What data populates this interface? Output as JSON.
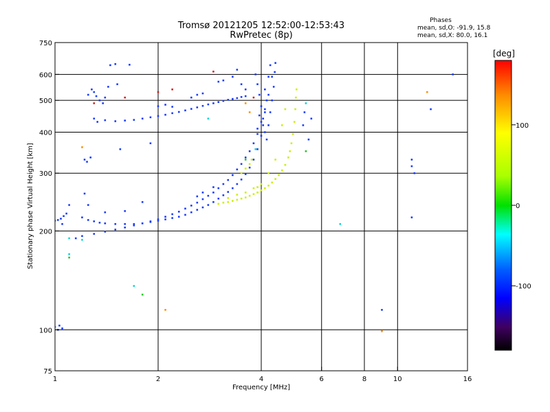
{
  "chart_data": {
    "type": "scatter",
    "title": "Tromsø 20121205 12:52:00-12:53:43",
    "subtitle": "RwPretec (8p)",
    "xlabel": "Frequency [MHz]",
    "ylabel": "Stationary phase Virtual Height [km]",
    "xscale": "log",
    "yscale": "log",
    "xlim": [
      1,
      16
    ],
    "ylim": [
      75,
      750
    ],
    "xticks": [
      1,
      2,
      4,
      6,
      8,
      10,
      16
    ],
    "yticks": [
      75,
      100,
      200,
      300,
      400,
      500,
      600,
      750
    ],
    "xgrid": [
      2,
      4,
      6,
      8,
      10
    ],
    "ygrid": [
      100,
      200,
      300,
      400,
      500,
      600
    ],
    "legend": {
      "header": "Phases",
      "line1": "mean, sd,O: -91.9, 15.8",
      "line2": "mean, sd,X:  80.0, 16.1"
    },
    "colorbar": {
      "label": "[deg]",
      "range": [
        -180,
        180
      ],
      "ticks": [
        100,
        0,
        -100
      ],
      "colors": [
        "#ff0000",
        "#ff8c00",
        "#ffff00",
        "#00e000",
        "#00ffff",
        "#0060ff",
        "#0000ff",
        "#400060",
        "#000000"
      ]
    },
    "series": [
      {
        "color": "#1a3cff",
        "phase": -92,
        "points": [
          [
            1.0,
            215
          ],
          [
            1.02,
            216
          ],
          [
            1.04,
            218
          ],
          [
            1.06,
            222
          ],
          [
            1.08,
            226
          ],
          [
            1.05,
            210
          ],
          [
            1.1,
            240
          ],
          [
            1.2,
            220
          ],
          [
            1.25,
            216
          ],
          [
            1.3,
            214
          ],
          [
            1.35,
            212
          ],
          [
            1.4,
            211
          ],
          [
            1.5,
            210
          ],
          [
            1.6,
            210
          ],
          [
            1.7,
            210
          ],
          [
            1.8,
            211
          ],
          [
            1.9,
            213
          ],
          [
            2.0,
            215
          ],
          [
            2.1,
            217
          ],
          [
            2.2,
            219
          ],
          [
            2.3,
            221
          ],
          [
            2.4,
            224
          ],
          [
            2.5,
            228
          ],
          [
            2.6,
            232
          ],
          [
            2.7,
            236
          ],
          [
            2.8,
            240
          ],
          [
            2.9,
            245
          ],
          [
            3.0,
            251
          ],
          [
            3.1,
            257
          ],
          [
            3.2,
            263
          ],
          [
            3.3,
            270
          ],
          [
            3.4,
            278
          ],
          [
            3.5,
            287
          ],
          [
            3.6,
            298
          ],
          [
            3.7,
            312
          ],
          [
            3.8,
            330
          ],
          [
            3.9,
            355
          ],
          [
            4.0,
            390
          ],
          [
            4.05,
            420
          ],
          [
            4.1,
            460
          ],
          [
            4.15,
            500
          ],
          [
            1.15,
            190
          ],
          [
            1.2,
            193
          ],
          [
            1.3,
            196
          ],
          [
            1.4,
            199
          ],
          [
            1.5,
            202
          ],
          [
            1.6,
            205
          ],
          [
            1.7,
            208
          ],
          [
            1.8,
            211
          ],
          [
            1.9,
            214
          ],
          [
            2.0,
            217
          ],
          [
            2.1,
            221
          ],
          [
            2.2,
            225
          ],
          [
            2.3,
            229
          ],
          [
            2.4,
            234
          ],
          [
            2.5,
            239
          ],
          [
            2.6,
            244
          ],
          [
            2.7,
            250
          ],
          [
            2.8,
            256
          ],
          [
            2.9,
            262
          ],
          [
            3.0,
            270
          ],
          [
            3.1,
            278
          ],
          [
            3.2,
            286
          ],
          [
            3.3,
            296
          ],
          [
            3.4,
            308
          ],
          [
            3.5,
            320
          ],
          [
            3.6,
            335
          ],
          [
            3.7,
            350
          ],
          [
            3.8,
            370
          ],
          [
            3.9,
            395
          ],
          [
            4.0,
            430
          ],
          [
            4.1,
            470
          ],
          [
            4.2,
            520
          ],
          [
            4.3,
            590
          ],
          [
            1.4,
            435
          ],
          [
            1.5,
            432
          ],
          [
            1.6,
            434
          ],
          [
            1.7,
            436
          ],
          [
            1.8,
            440
          ],
          [
            1.9,
            444
          ],
          [
            2.0,
            448
          ],
          [
            2.1,
            452
          ],
          [
            2.2,
            457
          ],
          [
            2.3,
            461
          ],
          [
            2.4,
            466
          ],
          [
            2.5,
            471
          ],
          [
            2.6,
            476
          ],
          [
            2.7,
            481
          ],
          [
            2.8,
            486
          ],
          [
            2.9,
            490
          ],
          [
            3.0,
            494
          ],
          [
            3.1,
            498
          ],
          [
            3.2,
            502
          ],
          [
            3.3,
            505
          ],
          [
            3.4,
            508
          ],
          [
            3.5,
            512
          ],
          [
            3.6,
            515
          ],
          [
            1.3,
            530
          ],
          [
            1.32,
            515
          ],
          [
            1.35,
            500
          ],
          [
            1.38,
            490
          ],
          [
            1.4,
            510
          ],
          [
            1.43,
            550
          ],
          [
            1.45,
            640
          ],
          [
            1.5,
            645
          ],
          [
            1.65,
            642
          ],
          [
            1.52,
            560
          ],
          [
            1.25,
            520
          ],
          [
            1.28,
            540
          ],
          [
            1.22,
            330
          ],
          [
            1.24,
            325
          ],
          [
            1.27,
            335
          ],
          [
            1.3,
            440
          ],
          [
            1.33,
            430
          ],
          [
            1.9,
            370
          ],
          [
            1.55,
            355
          ],
          [
            2.0,
            480
          ],
          [
            2.1,
            485
          ],
          [
            2.2,
            478
          ],
          [
            2.5,
            510
          ],
          [
            2.6,
            520
          ],
          [
            2.7,
            525
          ],
          [
            3.0,
            570
          ],
          [
            3.1,
            575
          ],
          [
            3.3,
            590
          ],
          [
            3.4,
            620
          ],
          [
            3.5,
            560
          ],
          [
            3.6,
            540
          ],
          [
            3.85,
            600
          ],
          [
            3.9,
            560
          ],
          [
            3.95,
            520
          ],
          [
            4.0,
            480
          ],
          [
            4.05,
            440
          ],
          [
            4.1,
            400
          ],
          [
            4.15,
            380
          ],
          [
            4.2,
            420
          ],
          [
            4.25,
            460
          ],
          [
            4.3,
            500
          ],
          [
            4.35,
            550
          ],
          [
            4.4,
            650
          ],
          [
            4.38,
            610
          ],
          [
            3.9,
            410
          ],
          [
            3.95,
            450
          ],
          [
            4.1,
            540
          ],
          [
            4.2,
            590
          ],
          [
            4.25,
            640
          ],
          [
            5.3,
            420
          ],
          [
            5.35,
            460
          ],
          [
            5.5,
            380
          ],
          [
            5.6,
            440
          ],
          [
            11.0,
            330
          ],
          [
            11.0,
            315
          ],
          [
            11.2,
            300
          ],
          [
            11.0,
            220
          ],
          [
            12.5,
            470
          ],
          [
            14.5,
            600
          ],
          [
            1.22,
            260
          ],
          [
            1.25,
            240
          ],
          [
            1.4,
            228
          ],
          [
            1.6,
            230
          ],
          [
            1.8,
            245
          ],
          [
            2.6,
            255
          ],
          [
            2.7,
            262
          ],
          [
            2.9,
            272
          ],
          [
            1.0,
            102
          ],
          [
            1.03,
            103
          ],
          [
            1.05,
            101
          ],
          [
            1.02,
            100
          ],
          [
            9.0,
            115
          ]
        ]
      },
      {
        "color": "#ccf000",
        "phase": 80,
        "points": [
          [
            3.0,
            242
          ],
          [
            3.1,
            244
          ],
          [
            3.2,
            245
          ],
          [
            3.3,
            247
          ],
          [
            3.4,
            249
          ],
          [
            3.5,
            251
          ],
          [
            3.6,
            253
          ],
          [
            3.7,
            256
          ],
          [
            3.8,
            259
          ],
          [
            3.9,
            262
          ],
          [
            4.0,
            266
          ],
          [
            4.1,
            270
          ],
          [
            4.2,
            275
          ],
          [
            4.3,
            281
          ],
          [
            4.4,
            288
          ],
          [
            4.5,
            296
          ],
          [
            4.6,
            306
          ],
          [
            4.7,
            318
          ],
          [
            4.8,
            335
          ],
          [
            4.85,
            350
          ],
          [
            4.9,
            370
          ],
          [
            4.95,
            395
          ],
          [
            5.0,
            430
          ],
          [
            5.03,
            470
          ],
          [
            5.05,
            510
          ],
          [
            5.07,
            540
          ],
          [
            3.2,
            252
          ],
          [
            3.4,
            258
          ],
          [
            3.6,
            262
          ],
          [
            3.8,
            270
          ],
          [
            3.9,
            272
          ],
          [
            4.0,
            278
          ],
          [
            3.5,
            300
          ],
          [
            3.6,
            310
          ],
          [
            3.7,
            320
          ],
          [
            3.75,
            330
          ],
          [
            4.2,
            300
          ],
          [
            4.4,
            330
          ],
          [
            4.6,
            420
          ],
          [
            4.7,
            470
          ]
        ]
      },
      {
        "color": "#ff9000",
        "phase": 140,
        "points": [
          [
            2.1,
            115
          ],
          [
            3.6,
            490
          ],
          [
            3.7,
            460
          ],
          [
            9.0,
            99
          ],
          [
            12.2,
            530
          ],
          [
            1.2,
            360
          ]
        ]
      },
      {
        "color": "#d02020",
        "phase": 170,
        "points": [
          [
            2.0,
            530
          ],
          [
            2.2,
            540
          ],
          [
            2.9,
            612
          ],
          [
            3.8,
            510
          ],
          [
            1.6,
            510
          ],
          [
            1.3,
            490
          ]
        ]
      },
      {
        "color": "#00d8d8",
        "phase": -10,
        "points": [
          [
            1.1,
            190
          ],
          [
            1.2,
            188
          ],
          [
            3.85,
            355
          ],
          [
            5.4,
            490
          ],
          [
            6.8,
            210
          ],
          [
            1.7,
            136
          ],
          [
            1.1,
            170
          ],
          [
            2.8,
            440
          ]
        ]
      },
      {
        "color": "#20c820",
        "phase": 30,
        "points": [
          [
            1.8,
            128
          ],
          [
            1.1,
            166
          ],
          [
            5.4,
            350
          ],
          [
            3.6,
            330
          ]
        ]
      }
    ]
  }
}
